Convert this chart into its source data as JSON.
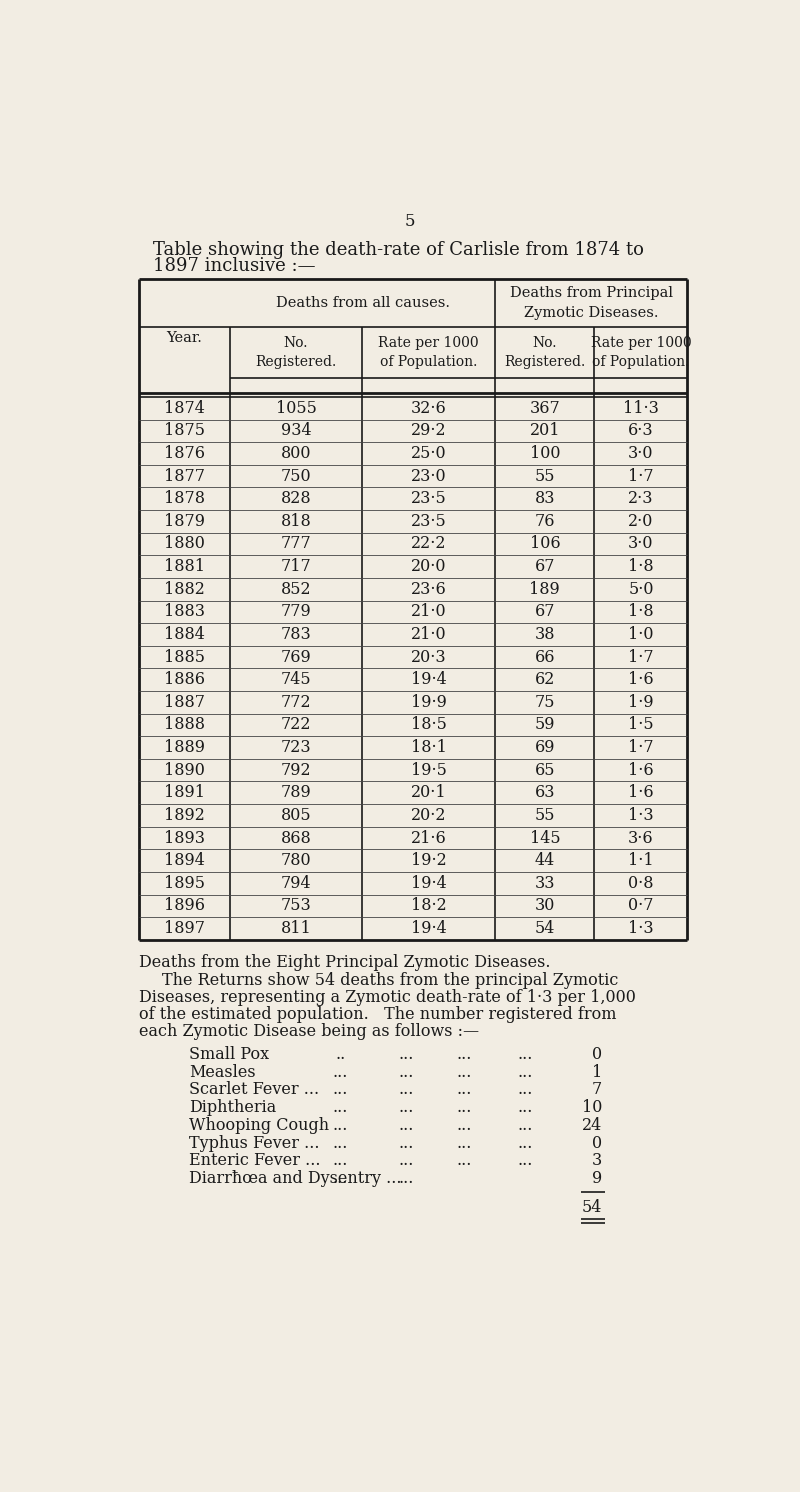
{
  "bg_color": "#f2ede3",
  "page_number": "5",
  "title_line1": "Table showing the death-rate of Carlisle from 1874 to",
  "title_line2": "1897 inclusive :—",
  "table_data": [
    [
      "1874",
      "1055",
      "32·6",
      "367",
      "11·3"
    ],
    [
      "1875",
      "934",
      "29·2",
      "201",
      "6·3"
    ],
    [
      "1876",
      "800",
      "25·0",
      "100",
      "3·0"
    ],
    [
      "1877",
      "750",
      "23·0",
      "55",
      "1·7"
    ],
    [
      "1878",
      "828",
      "23·5",
      "83",
      "2·3"
    ],
    [
      "1879",
      "818",
      "23·5",
      "76",
      "2·0"
    ],
    [
      "1880",
      "777",
      "22·2",
      "106",
      "3·0"
    ],
    [
      "1881",
      "717",
      "20·0",
      "67",
      "1·8"
    ],
    [
      "1882",
      "852",
      "23·6",
      "189",
      "5·0"
    ],
    [
      "1883",
      "779",
      "21·0",
      "67",
      "1·8"
    ],
    [
      "1884",
      "783",
      "21·0",
      "38",
      "1·0"
    ],
    [
      "1885",
      "769",
      "20·3",
      "66",
      "1·7"
    ],
    [
      "1886",
      "745",
      "19·4",
      "62",
      "1·6"
    ],
    [
      "1887",
      "772",
      "19·9",
      "75",
      "1·9"
    ],
    [
      "1888",
      "722",
      "18·5",
      "59",
      "1·5"
    ],
    [
      "1889",
      "723",
      "18·1",
      "69",
      "1·7"
    ],
    [
      "1890",
      "792",
      "19·5",
      "65",
      "1·6"
    ],
    [
      "1891",
      "789",
      "20·1",
      "63",
      "1·6"
    ],
    [
      "1892",
      "805",
      "20·2",
      "55",
      "1·3"
    ],
    [
      "1893",
      "868",
      "21·6",
      "145",
      "3·6"
    ],
    [
      "1894",
      "780",
      "19·2",
      "44",
      "1·1"
    ],
    [
      "1895",
      "794",
      "19·4",
      "33",
      "0·8"
    ],
    [
      "1896",
      "753",
      "18·2",
      "30",
      "0·7"
    ],
    [
      "1897",
      "811",
      "19·4",
      "54",
      "1·3"
    ]
  ],
  "section_title_parts": [
    {
      "text": "D",
      "style": "normal"
    },
    {
      "text": "eaths from the ",
      "style": "sc"
    },
    {
      "text": "E",
      "style": "normal"
    },
    {
      "text": "ight ",
      "style": "sc"
    },
    {
      "text": "P",
      "style": "normal"
    },
    {
      "text": "rincipal ",
      "style": "sc"
    },
    {
      "text": "Z",
      "style": "normal"
    },
    {
      "text": "ymotic ",
      "style": "sc"
    },
    {
      "text": "D",
      "style": "normal"
    },
    {
      "text": "iseases.",
      "style": "sc"
    }
  ],
  "section_title": "Deaths from the Eight Principal Zymotic Diseases.",
  "para1": "The Returns show 54 deaths from the principal Zymotic",
  "para2": "Diseases, representing a Zymotic death-rate of 1·3 per 1,000",
  "para3": "of the estimated population.   The number registered from",
  "para4": "each Zymotic Disease being as follows :—",
  "diseases_data": [
    [
      "Small Pox",
      "..",
      "...",
      "...",
      "...",
      "0"
    ],
    [
      "Measles",
      "...",
      "...",
      "...",
      "...",
      "1"
    ],
    [
      "Scarlet Fever ...",
      "...",
      "...",
      "...",
      "...",
      "7"
    ],
    [
      "Diphtheria",
      "...",
      "...",
      "...",
      "...",
      "10"
    ],
    [
      "Whooping Cough",
      "...",
      "...",
      "...",
      "...",
      "24"
    ],
    [
      "Typhus Fever ...",
      "...",
      "...",
      "...",
      "...",
      "0"
    ],
    [
      "Enteric Fever ...",
      "...",
      "...",
      "...",
      "...",
      "3"
    ],
    [
      "Diarrħœa and Dysentry ...",
      "...",
      "...",
      "9"
    ]
  ],
  "diseases_total": "54"
}
